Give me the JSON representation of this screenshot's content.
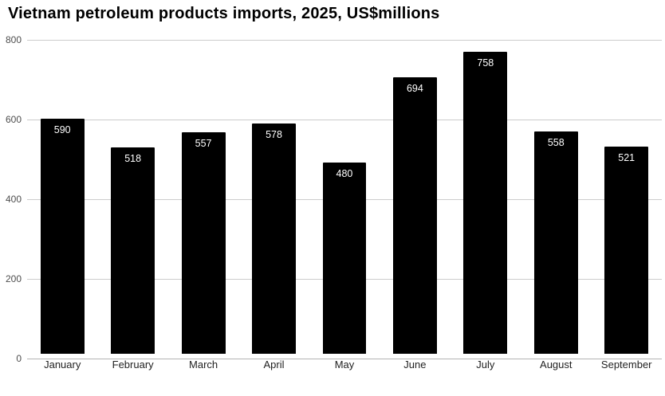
{
  "title": "Vietnam petroleum products imports, 2025, US$millions",
  "chart_data": {
    "type": "bar",
    "title": "Vietnam petroleum products imports, 2025, US$millions",
    "categories": [
      "January",
      "February",
      "March",
      "April",
      "May",
      "June",
      "July",
      "August",
      "September"
    ],
    "values": [
      590,
      518,
      557,
      578,
      480,
      694,
      758,
      558,
      521
    ],
    "xlabel": "",
    "ylabel": "",
    "ylim": [
      0,
      800
    ],
    "yticks": [
      0,
      200,
      400,
      600,
      800
    ],
    "grid": true,
    "legend": "none",
    "bar_color": "#000000",
    "value_label_color": "#ffffff",
    "gridline_color": "#cccccc"
  }
}
